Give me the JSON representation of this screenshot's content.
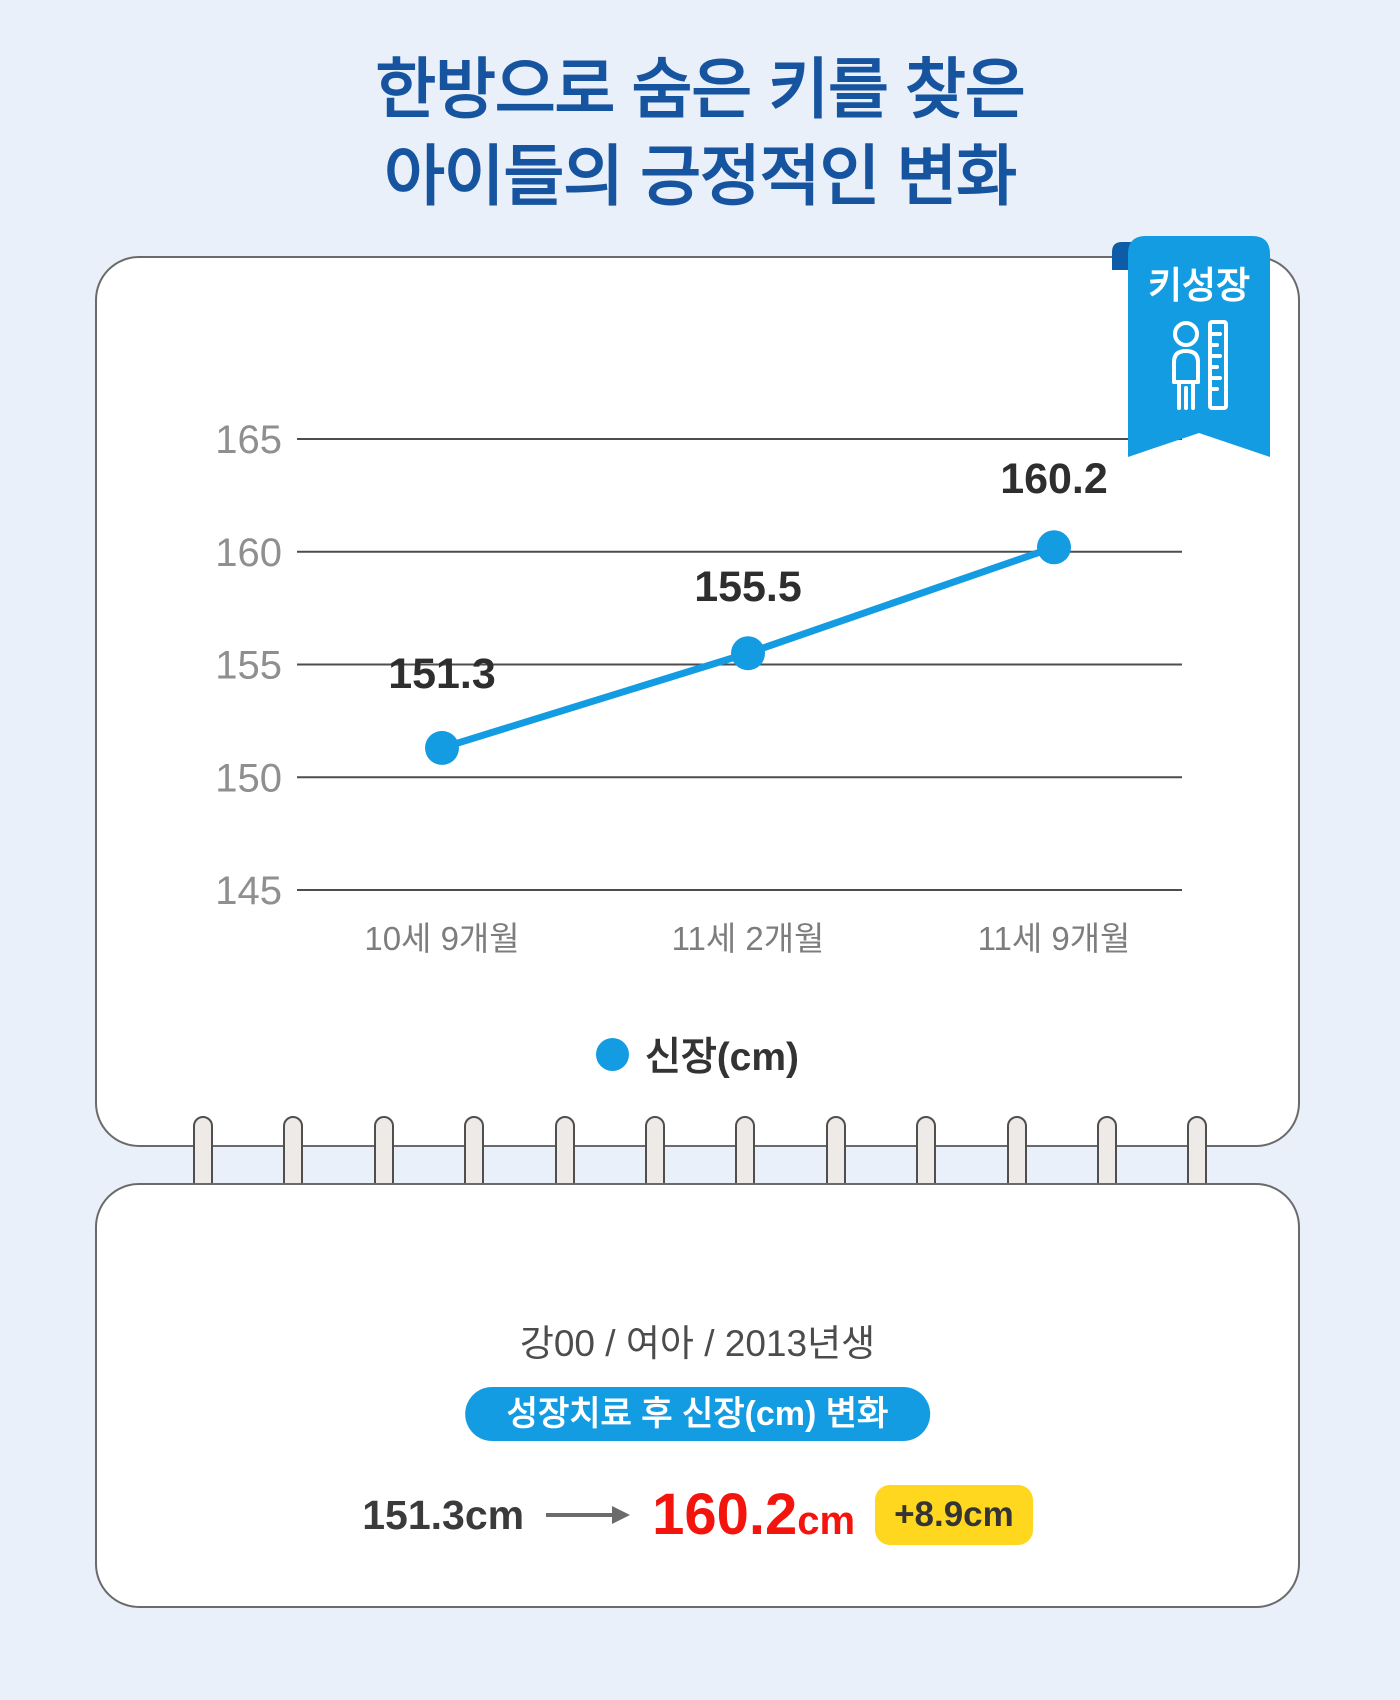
{
  "page": {
    "background": "#E9F0FA"
  },
  "title": {
    "line1": "한방으로 숨은 키를 찾은",
    "line2": "아이들의 긍정적인 변화",
    "color": "#17549F"
  },
  "ribbon": {
    "label": "키성장",
    "icon": "person-ruler-icon",
    "color": "#149CE2",
    "fold_color": "#0D5CA8"
  },
  "chart_data": {
    "type": "line",
    "categories": [
      "10세 9개월",
      "11세 2개월",
      "11세 9개월"
    ],
    "values": [
      151.3,
      155.5,
      160.2
    ],
    "data_labels": [
      "151.3",
      "155.5",
      "160.2"
    ],
    "legend": "신장(cm)",
    "legend_position": "bottom",
    "yticks": [
      165,
      160,
      155,
      150,
      145
    ],
    "ylim": [
      145,
      165
    ],
    "grid": true,
    "line_color": "#149CE2",
    "point_color": "#149CE2"
  },
  "summary": {
    "patient_info": "강00 / 여아 / 2013년생",
    "treatment_label": "성장치료 후 신장(cm) 변화",
    "before": "151.3",
    "before_unit": "cm",
    "after": "160.2",
    "after_unit": "cm",
    "delta": "+8.9cm",
    "after_color": "#F3140E",
    "delta_bg": "#FFD71E"
  }
}
